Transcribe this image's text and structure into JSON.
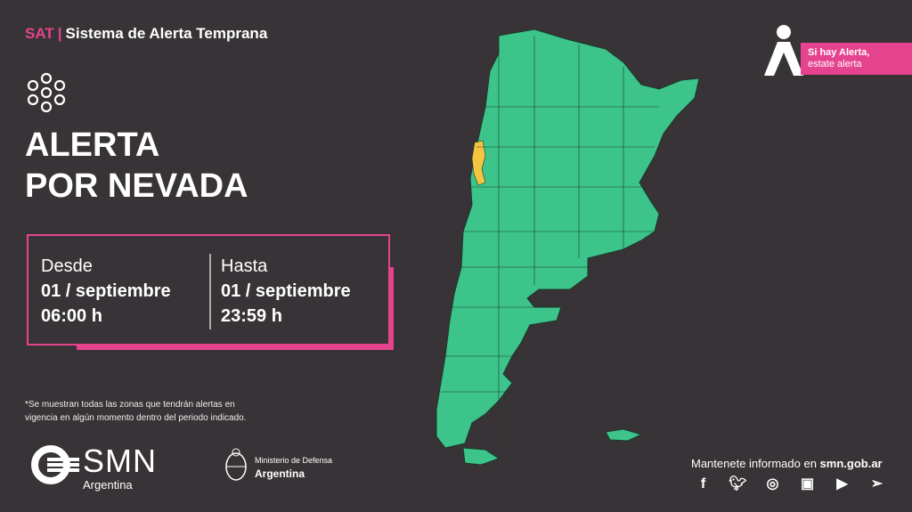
{
  "header": {
    "sat": "SAT",
    "separator": "|",
    "subtitle": "Sistema de Alerta Temprana"
  },
  "alert": {
    "icon": "snowflake-icon",
    "title_line1": "ALERTA",
    "title_line2": "POR NEVADA"
  },
  "period": {
    "from_label": "Desde",
    "from_date": "01 / septiembre",
    "from_time": "06:00 h",
    "to_label": "Hasta",
    "to_date": "01 / septiembre",
    "to_time": "23:59 h"
  },
  "note": {
    "line1": "*Se muestran todas las zonas que tendrán alertas en",
    "line2": "vigencia en algún momento dentro del periodo indicado."
  },
  "badge": {
    "line1": "Si hay Alerta,",
    "line2": "estate alerta"
  },
  "logos": {
    "smn": "SMN",
    "smn_sub": "Argentina",
    "ministry_line1": "Ministerio de Defensa",
    "ministry_line2": "Argentina"
  },
  "footer": {
    "stay_text": "Mantenete informado en ",
    "site": "smn.gob.ar",
    "social": [
      "facebook-icon",
      "twitter-icon",
      "instagram-icon",
      "igtv-icon",
      "youtube-icon",
      "telegram-icon"
    ]
  },
  "map": {
    "no_alert_color": "#3cc48a",
    "snow_alert_color": "#f5c542"
  },
  "colors": {
    "accent": "#e6438e",
    "background": "#373336"
  }
}
